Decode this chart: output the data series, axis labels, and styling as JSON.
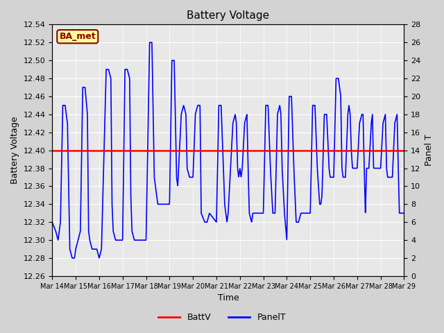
{
  "title": "Battery Voltage",
  "xlabel": "Time",
  "ylabel_left": "Battery Voltage",
  "ylabel_right": "Panel T",
  "ylim_left": [
    12.26,
    12.54
  ],
  "ylim_right": [
    0,
    28
  ],
  "yticks_left": [
    12.26,
    12.28,
    12.3,
    12.32,
    12.34,
    12.36,
    12.38,
    12.4,
    12.42,
    12.44,
    12.46,
    12.48,
    12.5,
    12.52,
    12.54
  ],
  "yticks_right": [
    0,
    2,
    4,
    6,
    8,
    10,
    12,
    14,
    16,
    18,
    20,
    22,
    24,
    26,
    28
  ],
  "x_labels": [
    "Mar 14",
    "Mar 15",
    "Mar 16",
    "Mar 17",
    "Mar 18",
    "Mar 19",
    "Mar 20",
    "Mar 21",
    "Mar 22",
    "Mar 23",
    "Mar 24",
    "Mar 25",
    "Mar 26",
    "Mar 27",
    "Mar 28",
    "Mar 29"
  ],
  "battv_value": 12.4,
  "battv_color": "#ff0000",
  "panelt_color": "#0000ff",
  "background_color": "#d3d3d3",
  "plot_bg_color": "#e8e8e8",
  "label_text": "BA_met",
  "label_bg": "#ffff99",
  "label_border": "#8b0000",
  "label_text_color": "#8b0000",
  "title_fontsize": 11,
  "axis_fontsize": 9,
  "tick_fontsize": 8,
  "grid_color": "#ffffff",
  "linewidth_panelt": 1.2,
  "linewidth_battv": 1.8
}
